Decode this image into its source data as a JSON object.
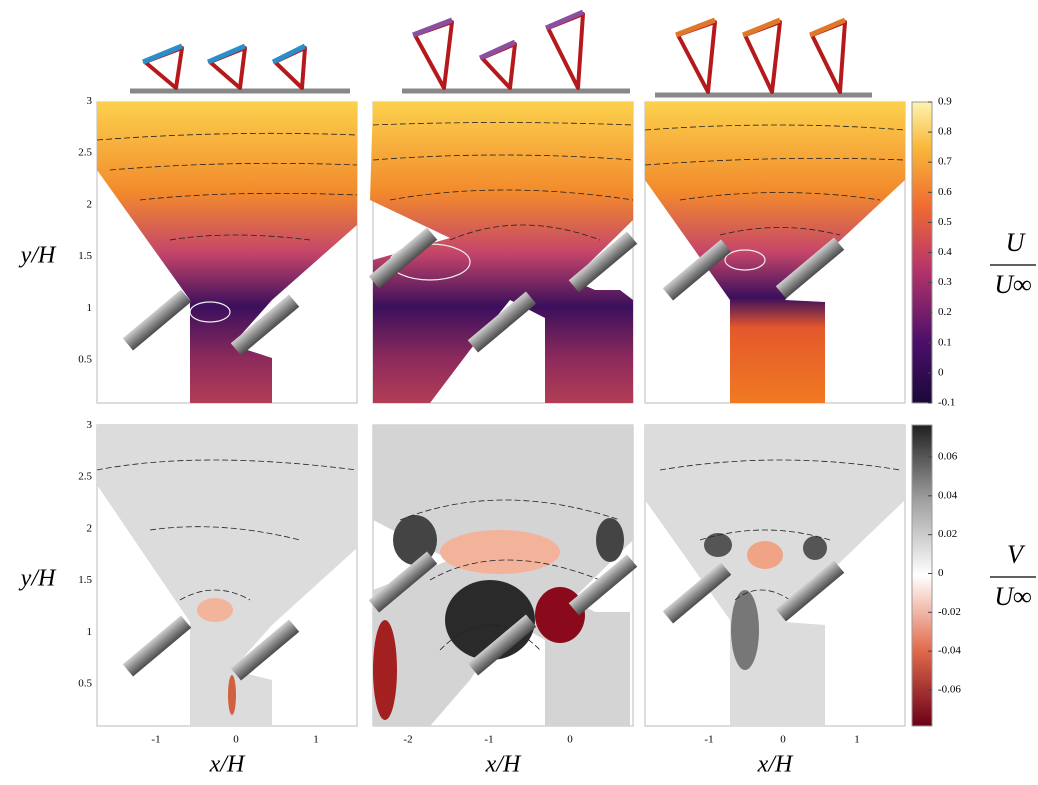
{
  "figure": {
    "rows": [
      {
        "y_label": "y/H",
        "y_ticks": [
          "0.5",
          "1",
          "1.5",
          "2",
          "2.5",
          "3"
        ],
        "colorbar": {
          "numerator": "U",
          "denominator": "U∞",
          "ticks": [
            "-0.1",
            "0",
            "0.1",
            "0.2",
            "0.3",
            "0.4",
            "0.5",
            "0.6",
            "0.7",
            "0.8",
            "0.9"
          ]
        }
      },
      {
        "y_label": "y/H",
        "y_ticks": [
          "0.5",
          "1",
          "1.5",
          "2",
          "2.5",
          "3"
        ],
        "colorbar": {
          "numerator": "V",
          "denominator": "U∞",
          "ticks": [
            "-0.06",
            "-0.04",
            "-0.02",
            "0",
            "0.02",
            "0.04",
            "0.06"
          ]
        }
      }
    ],
    "columns": [
      {
        "x_label": "x/H",
        "x_ticks": [
          "-1",
          "0",
          "1"
        ]
      },
      {
        "x_label": "x/H",
        "x_ticks": [
          "-2",
          "-1",
          "0"
        ]
      },
      {
        "x_label": "x/H",
        "x_ticks": [
          "-1",
          "0",
          "1"
        ]
      }
    ]
  }
}
